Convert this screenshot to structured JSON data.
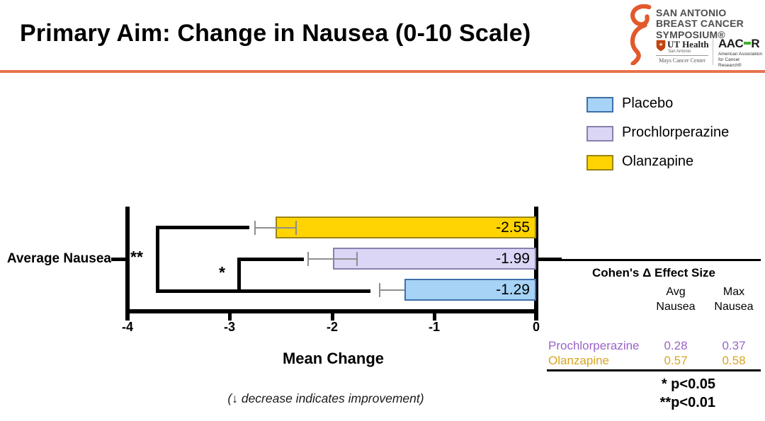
{
  "slide": {
    "title": "Primary Aim: Change in Nausea (0-10 Scale)",
    "accent_rule_color": "#E8734F"
  },
  "logo": {
    "symposium_lines": [
      "SAN ANTONIO",
      "BREAST CANCER",
      "SYMPOSIUM®"
    ],
    "ribbon_color": "#E2592C",
    "ut_health": {
      "name": "UT Health",
      "sub": "San Antonio",
      "center": "Mays Cancer Center",
      "shield_color": "#C1440E"
    },
    "aacr": {
      "name_left": "AAC",
      "name_right": "R",
      "dash_color": "#3FAE2A",
      "sub_line1": "American Association",
      "sub_line2": "for Cancer Research®"
    }
  },
  "legend": {
    "items": [
      {
        "label": "Placebo",
        "fill": "#A6D3F6",
        "border": "#3F6FA8"
      },
      {
        "label": "Prochlorperazine",
        "fill": "#DBD5F6",
        "border": "#8781AD"
      },
      {
        "label": "Olanzapine",
        "fill": "#FFD400",
        "border": "#9A8512"
      }
    ]
  },
  "chart_data": {
    "type": "bar",
    "orientation": "horizontal",
    "category": "Average Nausea",
    "xlabel": "Mean Change",
    "xlim": [
      -4,
      0
    ],
    "x_ticks": [
      -4,
      -3,
      -2,
      -1,
      0
    ],
    "series": [
      {
        "name": "Olanzapine",
        "value": -2.55,
        "label": "-2.55",
        "error_range": [
          -2.76,
          -2.34
        ],
        "error_caps": "both",
        "fill": "#FFD400",
        "border": "#9A8512"
      },
      {
        "name": "Prochlorperazine",
        "value": -1.99,
        "label": "-1.99",
        "error_range": [
          -2.24,
          -1.75
        ],
        "error_caps": "both",
        "fill": "#DBD5F6",
        "border": "#8781AD"
      },
      {
        "name": "Placebo",
        "value": -1.29,
        "label": "-1.29",
        "error_range": [
          -1.54,
          -1.29
        ],
        "error_caps": "left",
        "fill": "#A6D3F6",
        "border": "#3F6FA8"
      }
    ],
    "significance": [
      {
        "symbol": "**",
        "between": [
          "Olanzapine",
          "Placebo"
        ],
        "p": "p<0.01"
      },
      {
        "symbol": "*",
        "between": [
          "Prochlorperazine",
          "Placebo"
        ],
        "p": "p<0.05"
      }
    ],
    "note": "(↓ decrease indicates improvement)"
  },
  "effect_size_table": {
    "title": "Cohen's Δ Effect Size",
    "col_headers": [
      [
        "Avg",
        "Nausea"
      ],
      [
        "Max",
        "Nausea"
      ]
    ],
    "rows": [
      {
        "label": "Prochlorperazine",
        "color": "#9B63C8",
        "values": [
          "0.28",
          "0.37"
        ]
      },
      {
        "label": "Olanzapine",
        "color": "#D9A521",
        "values": [
          "0.57",
          "0.58"
        ]
      }
    ]
  },
  "footnotes": [
    "* p<0.05",
    "**p<0.01"
  ]
}
